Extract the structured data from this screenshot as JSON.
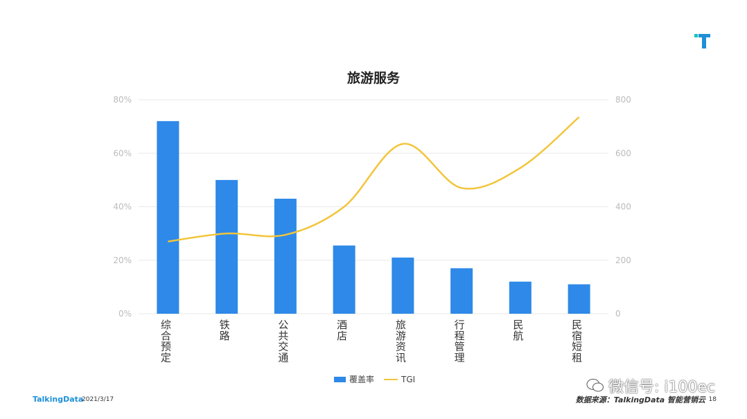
{
  "chart_data": {
    "type": "bar+line",
    "title": "旅游服务",
    "categories": [
      "综合预定",
      "铁路",
      "公共交通",
      "酒店",
      "旅游资讯",
      "行程管理",
      "民航",
      "民宿短租"
    ],
    "series": [
      {
        "name": "覆盖率",
        "type": "bar",
        "axis": "left",
        "values": [
          72,
          50,
          43,
          25.5,
          21,
          17,
          12,
          11
        ],
        "color": "#2e89e8"
      },
      {
        "name": "TGI",
        "type": "line",
        "axis": "right",
        "values": [
          270,
          300,
          295,
          400,
          635,
          470,
          545,
          735
        ],
        "color": "#f2c53b"
      }
    ],
    "y_left": {
      "ticks": [
        "0%",
        "20%",
        "40%",
        "60%",
        "80%"
      ],
      "min": 0,
      "max": 80
    },
    "y_right": {
      "ticks": [
        "0",
        "200",
        "400",
        "600",
        "800"
      ],
      "min": 0,
      "max": 800
    },
    "grid": true,
    "legend": "bottom"
  },
  "footer": {
    "brand": "TalkingData",
    "date": "2021/3/17",
    "source": "数据来源：TalkingData 智能营销云",
    "page": "18"
  },
  "watermark": {
    "text": "微信号: i100ec"
  },
  "icons": {
    "logo": "talkingdata-t-logo",
    "watermark": "wechat-icon"
  }
}
